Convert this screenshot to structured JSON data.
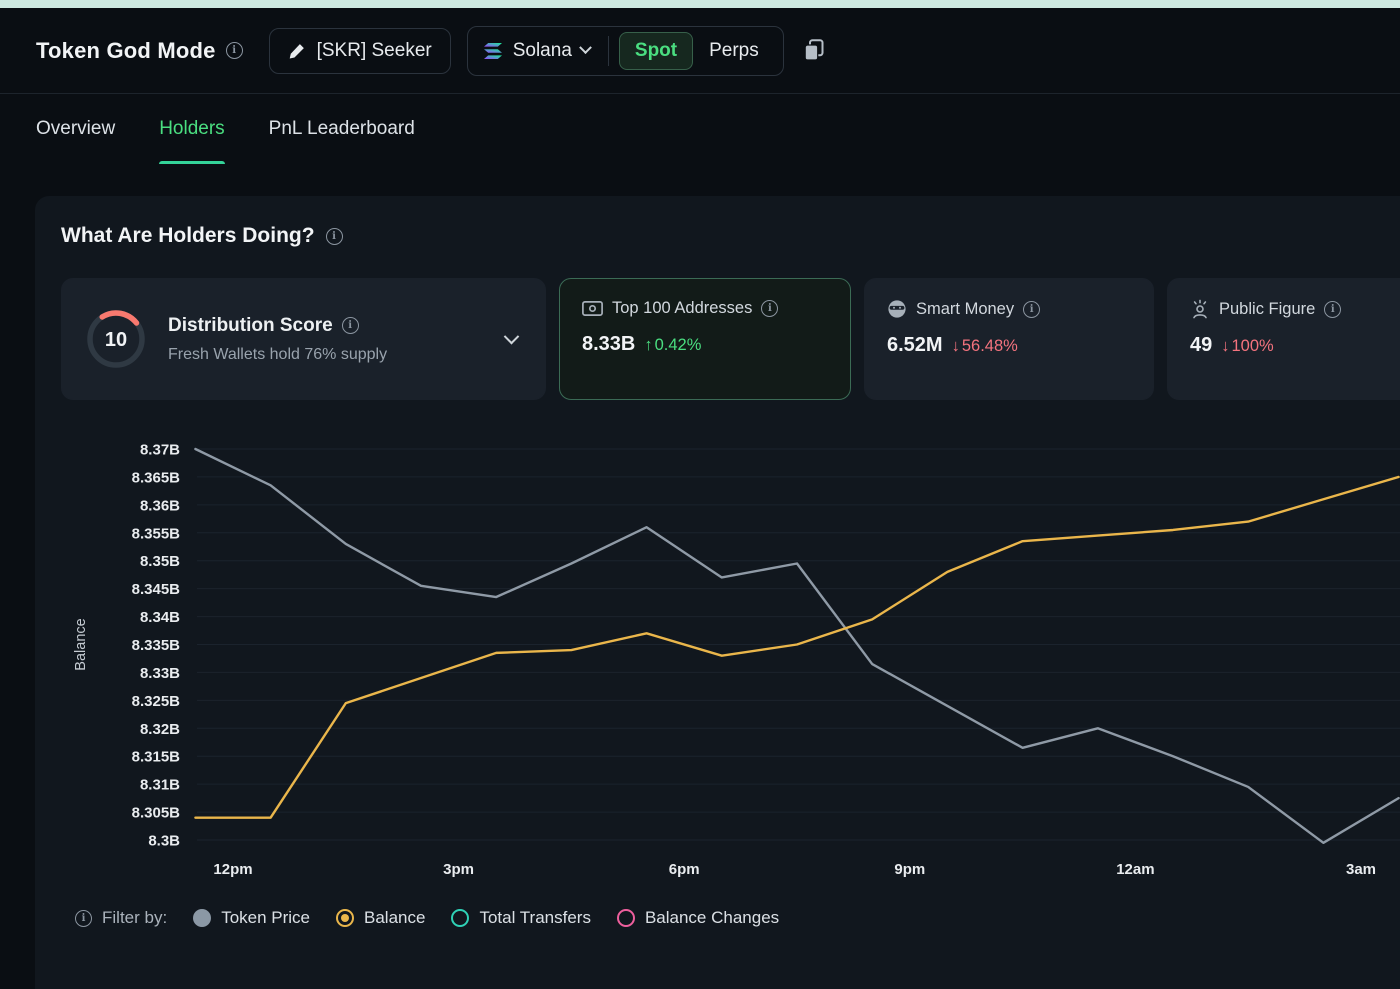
{
  "header": {
    "title": "Token God Mode",
    "token_button_label": "[SKR] Seeker",
    "chain_label": "Solana",
    "spot_label": "Spot",
    "perps_label": "Perps"
  },
  "tabs": [
    {
      "label": "Overview",
      "active": false
    },
    {
      "label": "Holders",
      "active": true
    },
    {
      "label": "PnL Leaderboard",
      "active": false
    }
  ],
  "panel": {
    "title": "What Are Holders Doing?",
    "cards": {
      "distribution": {
        "score": "10",
        "title": "Distribution Score",
        "subtitle": "Fresh Wallets hold 76% supply"
      },
      "top100": {
        "title": "Top 100 Addresses",
        "value": "8.33B",
        "arrow": "↑",
        "change": "0.42%",
        "direction": "up",
        "selected": true
      },
      "smart_money": {
        "title": "Smart Money",
        "value": "6.52M",
        "arrow": "↓",
        "change": "56.48%",
        "direction": "down",
        "selected": false
      },
      "public_figure": {
        "title": "Public Figure",
        "value": "49",
        "arrow": "↓",
        "change": "100%",
        "direction": "down",
        "selected": false
      }
    },
    "legend": {
      "label": "Filter by:",
      "items": [
        {
          "label": "Token Price",
          "color": "#8b98a5",
          "style": "filled",
          "selected": false
        },
        {
          "label": "Balance",
          "color": "#eab64b",
          "style": "radio",
          "selected": true
        },
        {
          "label": "Total Transfers",
          "color": "#2fd1b6",
          "style": "outline",
          "selected": false
        },
        {
          "label": "Balance Changes",
          "color": "#ee5f9d",
          "style": "outline",
          "selected": false
        }
      ]
    }
  },
  "chart_data": {
    "type": "line",
    "title": "",
    "xlabel": "",
    "ylabel": "Balance",
    "ylim": [
      8.3,
      8.37
    ],
    "y_tick_step": 0.005,
    "grid": true,
    "y_ticks": [
      "8.37B",
      "8.365B",
      "8.36B",
      "8.355B",
      "8.35B",
      "8.345B",
      "8.34B",
      "8.335B",
      "8.33B",
      "8.325B",
      "8.32B",
      "8.315B",
      "8.31B",
      "8.305B",
      "8.3B"
    ],
    "x_ticks": [
      "12pm",
      "3pm",
      "6pm",
      "9pm",
      "12am",
      "3am"
    ],
    "x_tick_hours": [
      0,
      3,
      6,
      9,
      12,
      15
    ],
    "x_hours": [
      -0.5,
      0.5,
      1.5,
      2.5,
      3.5,
      4.5,
      5.5,
      6.5,
      7.5,
      8.5,
      9.5,
      10.5,
      11.5,
      12.5,
      13.5,
      14.5,
      15.5
    ],
    "series": [
      {
        "name": "Token Price",
        "color": "#8f9aa6",
        "values": [
          8.37,
          8.3635,
          8.353,
          8.3455,
          8.3435,
          8.3495,
          8.356,
          8.347,
          8.3495,
          8.3315,
          8.324,
          8.3165,
          8.32,
          8.315,
          8.3095,
          8.2995,
          8.3075
        ]
      },
      {
        "name": "Balance",
        "color": "#eab64b",
        "values": [
          8.304,
          8.304,
          8.3245,
          8.329,
          8.3335,
          8.334,
          8.337,
          8.333,
          8.335,
          8.3395,
          8.348,
          8.3535,
          8.3545,
          8.3555,
          8.357,
          8.361,
          8.365
        ]
      }
    ]
  }
}
